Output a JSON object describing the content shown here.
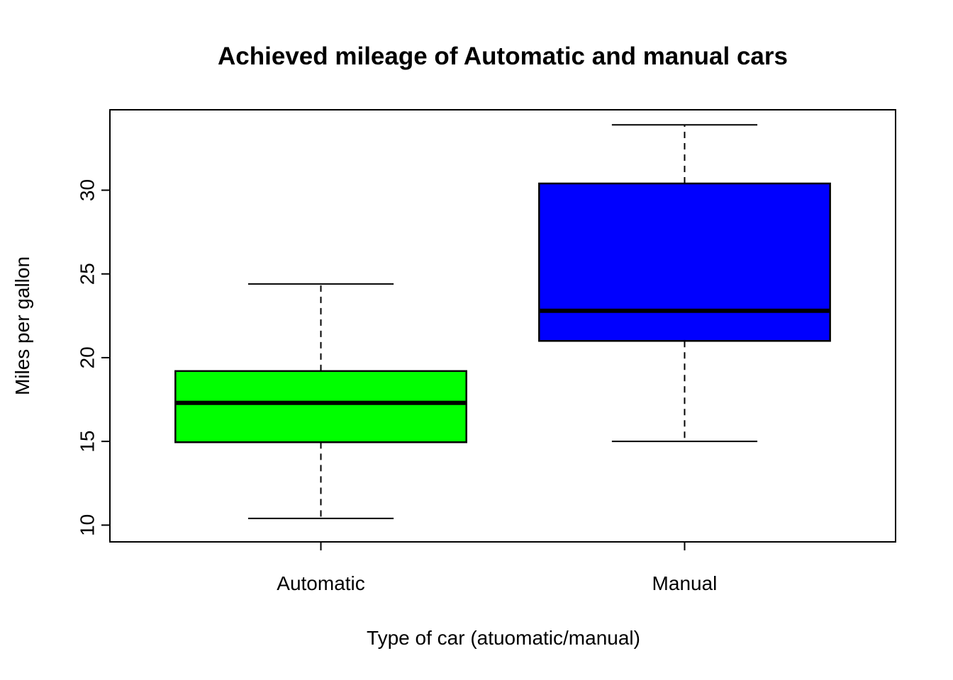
{
  "chart_data": {
    "type": "boxplot",
    "title": "Achieved mileage of Automatic and manual cars",
    "xlabel": "Type of car (atuomatic/manual)",
    "ylabel": "Miles per gallon",
    "categories": [
      "Automatic",
      "Manual"
    ],
    "series": [
      {
        "name": "Automatic",
        "color": "#00FF00",
        "min": 10.4,
        "q1": 14.95,
        "median": 17.3,
        "q3": 19.2,
        "max": 24.4
      },
      {
        "name": "Manual",
        "color": "#0000FF",
        "min": 15.0,
        "q1": 21.0,
        "median": 22.8,
        "q3": 30.4,
        "max": 33.9
      }
    ],
    "y_ticks": [
      10,
      15,
      20,
      25,
      30
    ],
    "ylim": [
      9.0,
      34.8
    ],
    "grid": false,
    "legend": "none",
    "background_color": "#FFFFFF",
    "axis_color": "#000000"
  }
}
